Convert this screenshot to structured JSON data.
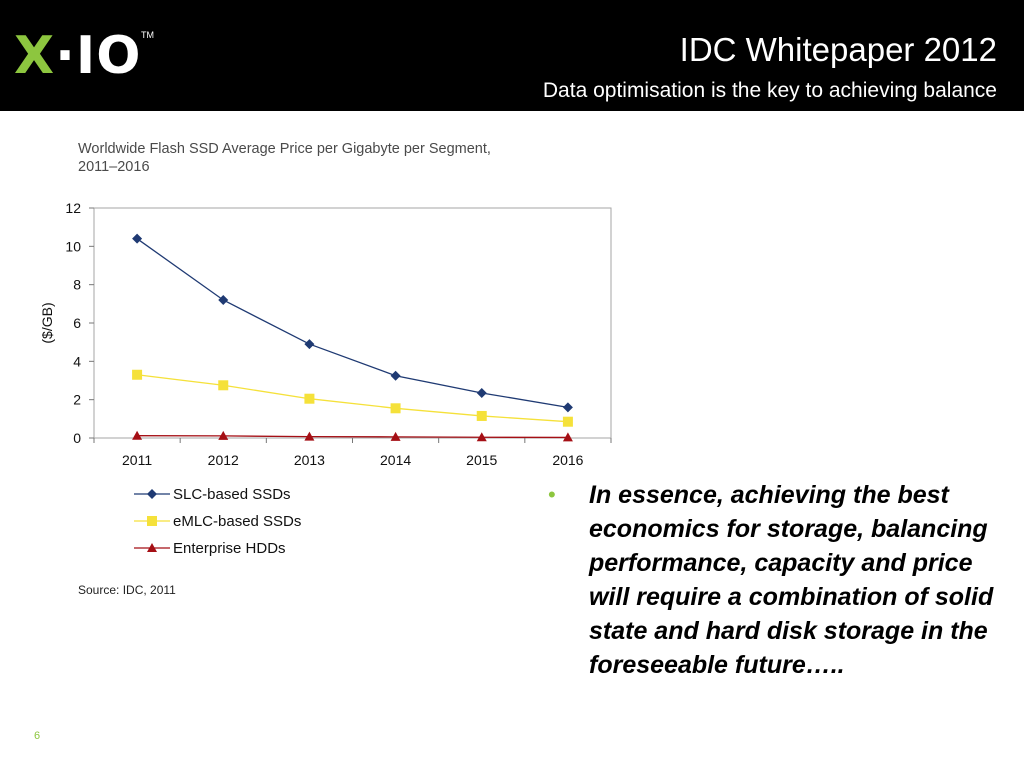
{
  "header": {
    "logo": {
      "mark": "X",
      "rest": "·IO",
      "tm": "TM"
    },
    "title": "IDC Whitepaper 2012",
    "subtitle": "Data optimisation is the key to achieving balance"
  },
  "chart_data": {
    "type": "line",
    "title": "Worldwide Flash SSD Average Price per Gigabyte per Segment, 2011–2016",
    "xlabel": "",
    "ylabel": "($/GB)",
    "categories": [
      "2011",
      "2012",
      "2013",
      "2014",
      "2015",
      "2016"
    ],
    "ylim": [
      0,
      12
    ],
    "yticks": [
      "0",
      "2",
      "4",
      "6",
      "8",
      "10",
      "12"
    ],
    "grid": false,
    "legend_position": "bottom-left",
    "series": [
      {
        "name": "SLC-based SSDs",
        "values": [
          10.4,
          7.2,
          4.9,
          3.25,
          2.35,
          1.6
        ],
        "color": "#1f3a73",
        "marker": "diamond"
      },
      {
        "name": "eMLC-based SSDs",
        "values": [
          3.3,
          2.75,
          2.05,
          1.55,
          1.15,
          0.85
        ],
        "color": "#f5e13a",
        "marker": "square"
      },
      {
        "name": "Enterprise HDDs",
        "values": [
          0.12,
          0.11,
          0.07,
          0.06,
          0.04,
          0.03
        ],
        "color": "#a50f15",
        "marker": "triangle"
      }
    ],
    "source": "Source: IDC, 2011"
  },
  "bullet": {
    "marker": "•",
    "text": "In essence, achieving the best economics for storage, balancing performance, capacity and price will require a combination of solid state and hard disk storage in the foreseeable future….."
  },
  "page_number": "6"
}
